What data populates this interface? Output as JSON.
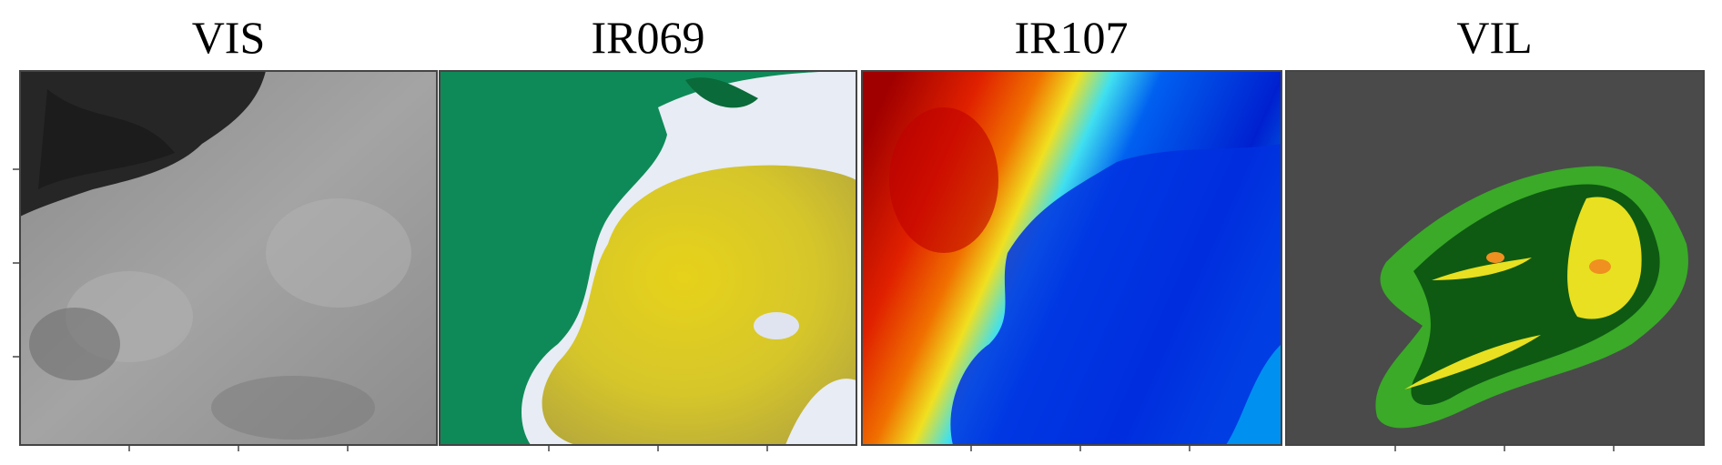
{
  "panels": [
    {
      "title": "VIS"
    },
    {
      "title": "IR069"
    },
    {
      "title": "IR107"
    },
    {
      "title": "VIL"
    }
  ]
}
